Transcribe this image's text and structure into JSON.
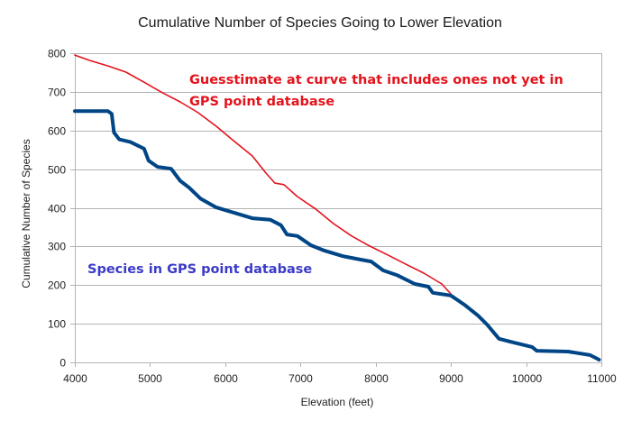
{
  "chart_data": {
    "type": "line",
    "title": "Cumulative Number of Species Going to Lower Elevation",
    "xlabel": "Elevation (feet)",
    "ylabel": "Cumulative Number of Species",
    "xlim": [
      4000,
      11000
    ],
    "ylim": [
      0,
      800
    ],
    "xticks": [
      4000,
      5000,
      6000,
      7000,
      8000,
      9000,
      10000,
      11000
    ],
    "yticks": [
      0,
      100,
      200,
      300,
      400,
      500,
      600,
      700,
      800
    ],
    "grid": "horizontal",
    "legend": "none",
    "series": [
      {
        "name": "Species in GPS point database",
        "color": "#004586",
        "x": [
          4000,
          4440,
          4490,
          4520,
          4590,
          4740,
          4920,
          4980,
          5100,
          5280,
          5400,
          5520,
          5670,
          5880,
          6120,
          6360,
          6600,
          6740,
          6820,
          6960,
          7140,
          7320,
          7560,
          7800,
          7940,
          8100,
          8280,
          8520,
          8700,
          8760,
          9000,
          9180,
          9360,
          9480,
          9640,
          9840,
          10080,
          10140,
          10560,
          10850,
          10970
        ],
        "y": [
          650,
          650,
          643,
          595,
          577,
          570,
          553,
          522,
          506,
          501,
          470,
          452,
          424,
          401,
          387,
          373,
          369,
          355,
          331,
          327,
          303,
          289,
          275,
          266,
          261,
          238,
          226,
          203,
          196,
          180,
          173,
          149,
          121,
          98,
          61,
          51,
          40,
          30,
          28,
          19,
          7
        ]
      },
      {
        "name": "Guesstimate at curve that includes ones not yet in GPS point database",
        "color": "#e3131c",
        "x": [
          4000,
          4200,
          4440,
          4680,
          4920,
          5160,
          5400,
          5640,
          5880,
          6120,
          6360,
          6540,
          6660,
          6780,
          6960,
          7200,
          7440,
          7680,
          7920,
          8160,
          8400,
          8640,
          8880,
          9000
        ],
        "y": [
          795,
          781,
          767,
          751,
          725,
          698,
          674,
          646,
          611,
          572,
          534,
          490,
          464,
          460,
          429,
          397,
          359,
          327,
          301,
          278,
          254,
          231,
          203,
          177
        ]
      }
    ],
    "annotations": [
      {
        "text_line1": "Guesstimate at curve that includes ones not yet in",
        "text_line2": "GPS point database",
        "color": "#e3131c"
      },
      {
        "text_line1": "Species in GPS point database",
        "color": "#3b3bc8"
      }
    ]
  }
}
